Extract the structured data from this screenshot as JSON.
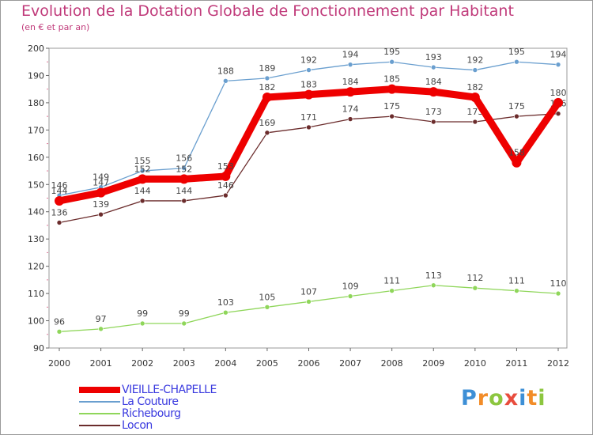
{
  "header": {
    "title": "Evolution de la Dotation Globale de Fonctionnement par Habitant",
    "subtitle": "(en € et par an)"
  },
  "chart_data": {
    "type": "line",
    "title": "Evolution de la Dotation Globale de Fonctionnement par Habitant",
    "subtitle": "(en € et par an)",
    "xlabel": "",
    "ylabel": "",
    "x": [
      "2000",
      "2001",
      "2002",
      "2003",
      "2004",
      "2005",
      "2006",
      "2007",
      "2008",
      "2009",
      "2010",
      "2011",
      "2012"
    ],
    "ylim": [
      90,
      200
    ],
    "yticks": [
      90,
      100,
      110,
      120,
      130,
      140,
      150,
      160,
      170,
      180,
      190,
      200
    ],
    "grid": false,
    "legend_position": "bottom-left",
    "series": [
      {
        "name": "La Couture",
        "color": "#6a9fcf",
        "values": [
          146,
          149,
          155,
          156,
          188,
          189,
          192,
          194,
          195,
          193,
          192,
          195,
          194
        ]
      },
      {
        "name": "Richebourg",
        "color": "#8fd65a",
        "values": [
          96,
          97,
          99,
          99,
          103,
          105,
          107,
          109,
          111,
          113,
          112,
          111,
          110
        ]
      },
      {
        "name": "Locon",
        "color": "#6b2c2c",
        "values": [
          136,
          139,
          144,
          144,
          146,
          169,
          171,
          174,
          175,
          173,
          173,
          175,
          176
        ]
      },
      {
        "name": "VIEILLE-CHAPELLE",
        "color": "#ee0000",
        "values": [
          144,
          147,
          152,
          152,
          153,
          182,
          183,
          184,
          185,
          184,
          182,
          158,
          180
        ]
      }
    ]
  },
  "legend": {
    "items": [
      {
        "label": "VIEILLE-CHAPELLE",
        "color": "#ee0000"
      },
      {
        "label": "La Couture",
        "color": "#6a9fcf"
      },
      {
        "label": "Richebourg",
        "color": "#8fd65a"
      },
      {
        "label": "Locon",
        "color": "#6b2c2c"
      }
    ]
  },
  "logo": {
    "letters": [
      "P",
      "r",
      "o",
      "x",
      "i",
      "t",
      "i"
    ],
    "colors": [
      "#3d8fd6",
      "#f28c28",
      "#8cc63f",
      "#e84c3d",
      "#3d8fd6",
      "#f28c28",
      "#8cc63f"
    ]
  }
}
